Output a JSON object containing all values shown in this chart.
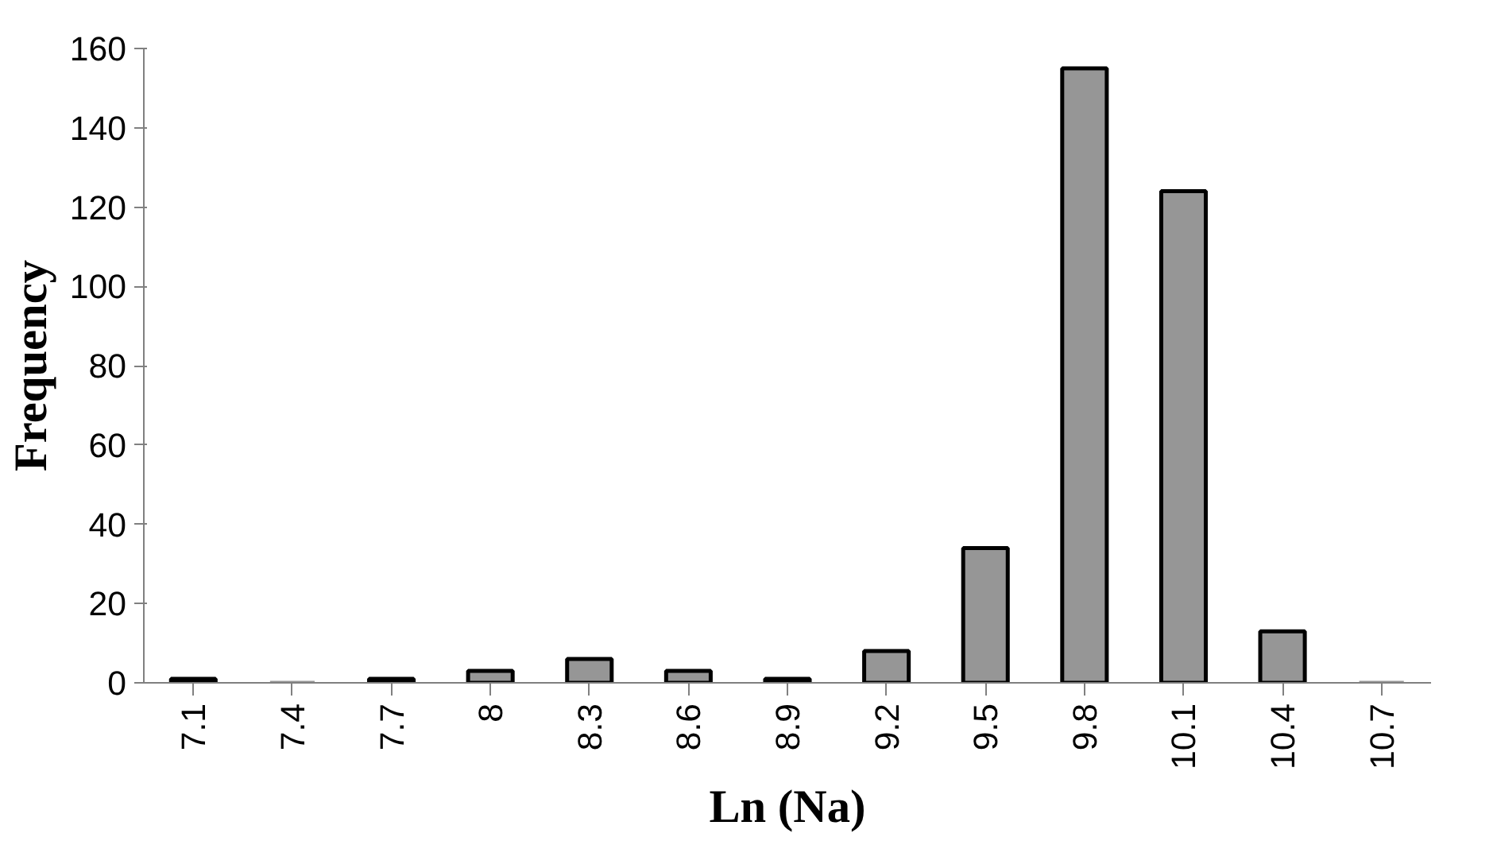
{
  "chart_data": {
    "type": "bar",
    "xlabel": "Ln (Na)",
    "ylabel": "Frequency",
    "categories": [
      "7.1",
      "7.4",
      "7.7",
      "8",
      "8.3",
      "8.6",
      "8.9",
      "9.2",
      "9.5",
      "9.8",
      "10.1",
      "10.4",
      "10.7"
    ],
    "values": [
      1,
      0,
      1,
      3,
      6,
      3,
      1,
      8,
      34,
      155,
      124,
      13,
      0
    ],
    "color": "#969696",
    "ylim": [
      0,
      160
    ],
    "yticks": [
      0,
      20,
      40,
      60,
      80,
      100,
      120,
      140,
      160
    ],
    "grid": false
  }
}
